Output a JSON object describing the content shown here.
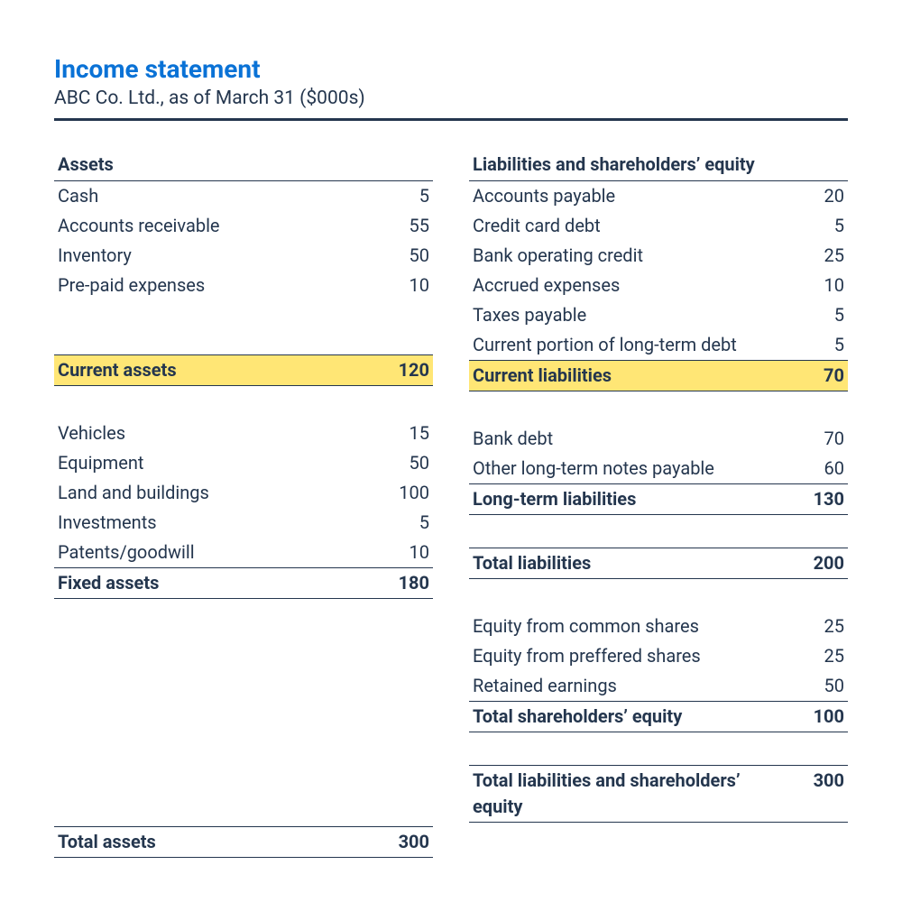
{
  "colors": {
    "title": "#0a72d6",
    "text": "#24364e",
    "rule": "#24364e",
    "highlight_bg": "#ffe675",
    "background": "#ffffff"
  },
  "header": {
    "title": "Income statement",
    "subtitle": "ABC Co. Ltd., as of March 31 ($000s)"
  },
  "left": {
    "assets_header": "Assets",
    "current_items": [
      {
        "label": "Cash",
        "value": "5"
      },
      {
        "label": "Accounts receivable",
        "value": "55"
      },
      {
        "label": "Inventory",
        "value": "50"
      },
      {
        "label": "Pre-paid expenses",
        "value": "10"
      }
    ],
    "current_total": {
      "label": "Current assets",
      "value": "120"
    },
    "fixed_items": [
      {
        "label": "Vehicles",
        "value": "15"
      },
      {
        "label": "Equipment",
        "value": "50"
      },
      {
        "label": "Land and buildings",
        "value": "100"
      },
      {
        "label": "Investments",
        "value": "5"
      },
      {
        "label": "Patents/goodwill",
        "value": "10"
      }
    ],
    "fixed_total": {
      "label": "Fixed assets",
      "value": "180"
    },
    "grand_total": {
      "label": "Total assets",
      "value": "300"
    }
  },
  "right": {
    "liab_header": "Liabilities and shareholders’ equity",
    "current_items": [
      {
        "label": "Accounts payable",
        "value": "20"
      },
      {
        "label": "Credit card debt",
        "value": "5"
      },
      {
        "label": "Bank operating credit",
        "value": "25"
      },
      {
        "label": "Accrued expenses",
        "value": "10"
      },
      {
        "label": "Taxes payable",
        "value": "5"
      },
      {
        "label": "Current portion of long-term debt",
        "value": "5"
      }
    ],
    "current_total": {
      "label": "Current liabilities",
      "value": "70"
    },
    "longterm_items": [
      {
        "label": "Bank debt",
        "value": "70"
      },
      {
        "label": "Other long-term notes payable",
        "value": "60"
      }
    ],
    "longterm_total": {
      "label": "Long-term liabilities",
      "value": "130"
    },
    "total_liab": {
      "label": "Total liabilities",
      "value": "200"
    },
    "equity_items": [
      {
        "label": "Equity from common shares",
        "value": "25"
      },
      {
        "label": "Equity from preffered shares",
        "value": "25"
      },
      {
        "label": "Retained earnings",
        "value": "50"
      }
    ],
    "equity_total": {
      "label": "Total shareholders’ equity",
      "value": "100"
    },
    "grand_total": {
      "label": "Total liabilities and shareholders’ equity",
      "value": "300"
    }
  }
}
